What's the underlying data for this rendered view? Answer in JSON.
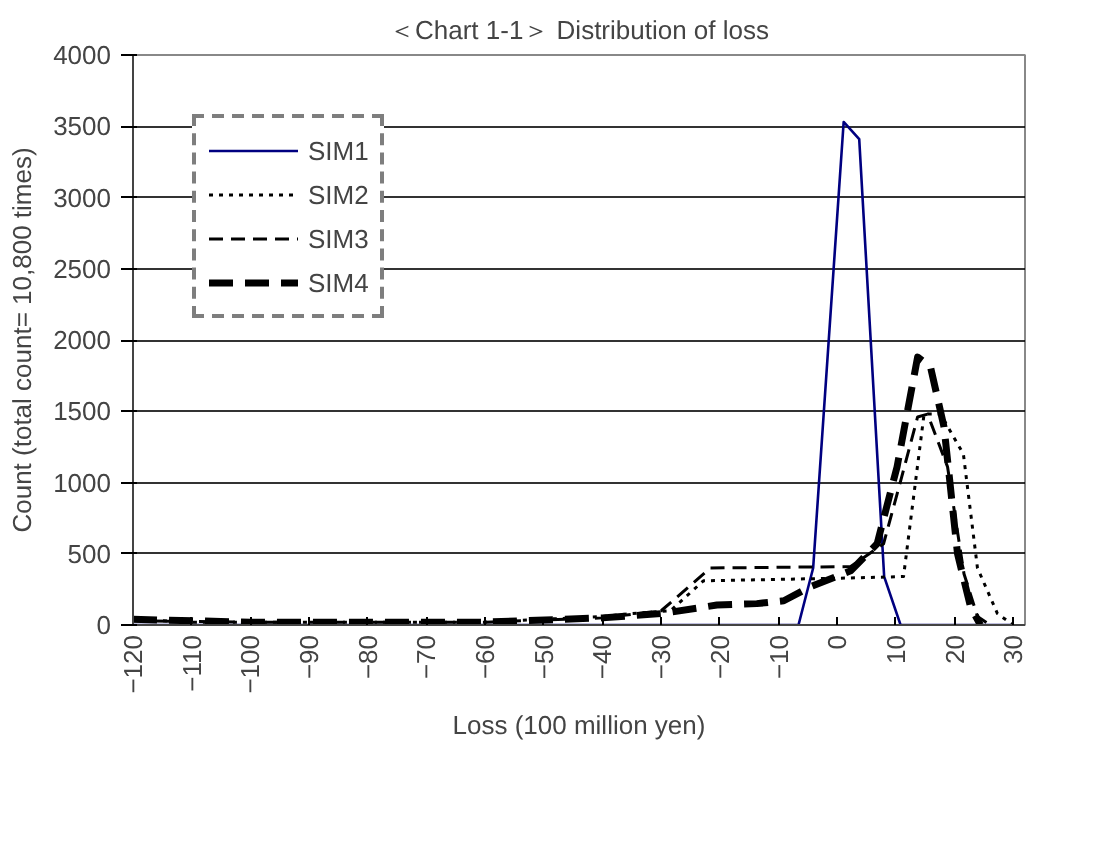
{
  "chart_data": {
    "type": "line",
    "title": "＜Chart 1-1＞ Distribution of loss",
    "xlabel": "Loss (100 million yen)",
    "ylabel": "Count (total count= 10,800 times)",
    "xlim": [
      -120,
      32
    ],
    "xticks": [
      -120,
      -110,
      -100,
      -90,
      -80,
      -70,
      -60,
      -50,
      -40,
      -30,
      -20,
      -10,
      0,
      10,
      20,
      30
    ],
    "ylim": [
      0,
      4000
    ],
    "yticks": [
      0,
      500,
      1000,
      1500,
      2000,
      2500,
      3000,
      3500,
      4000
    ],
    "grid": "y",
    "legend": "top left",
    "marker": "none",
    "series": [
      {
        "name": "SIM1",
        "color": "#000080",
        "line_style": "solid",
        "x": [
          -120,
          -6.6,
          -4.1,
          1.1,
          3.75,
          8,
          10.8,
          30
        ],
        "values": [
          0,
          0,
          400,
          3530,
          3410,
          340,
          0,
          0
        ]
      },
      {
        "name": "SIM2",
        "color": "#000000",
        "line_style": "dotted",
        "x": [
          -120,
          -110,
          -100,
          -90,
          -80,
          -70,
          -60,
          -50,
          -40,
          -35,
          -28.4,
          -22.8,
          -10,
          2,
          11.3,
          14.8,
          17.6,
          21.5,
          23.9,
          27.3,
          30
        ],
        "values": [
          40,
          20,
          20,
          20,
          20,
          20,
          20,
          40,
          60,
          80,
          100,
          310,
          320,
          330,
          340,
          1480,
          1480,
          1200,
          400,
          80,
          0
        ]
      },
      {
        "name": "SIM3",
        "color": "#000000",
        "line_style": "dashed",
        "x": [
          -120,
          -100,
          -80,
          -60,
          -40,
          -30,
          -21.6,
          2.3,
          7.9,
          10.8,
          13.7,
          15.4,
          18.8,
          21.6,
          23.9,
          26.1
        ],
        "values": [
          30,
          20,
          20,
          20,
          50,
          100,
          400,
          410,
          570,
          1010,
          1460,
          1480,
          1110,
          360,
          60,
          0
        ]
      },
      {
        "name": "SIM4",
        "color": "#000000",
        "line_style": "longdash",
        "x": [
          -120,
          -100,
          -80,
          -60,
          -40,
          -30,
          -20.5,
          -13.7,
          -9.1,
          -4.5,
          2.3,
          6.8,
          10.2,
          13.7,
          15.9,
          18.2,
          20.5,
          22.7,
          24.4
        ],
        "values": [
          40,
          20,
          20,
          20,
          50,
          80,
          140,
          150,
          170,
          270,
          380,
          570,
          1110,
          1880,
          1810,
          1390,
          500,
          130,
          0
        ]
      }
    ]
  }
}
